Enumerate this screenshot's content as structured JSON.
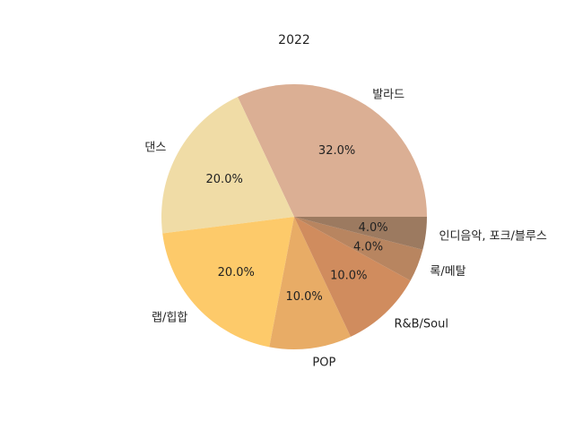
{
  "chart_data": {
    "type": "pie",
    "title": "2022",
    "slices": [
      {
        "label": "발라드",
        "value": 32.0,
        "pct_label": "32.0%",
        "color": "#dbaf94"
      },
      {
        "label": "댄스",
        "value": 20.0,
        "pct_label": "20.0%",
        "color": "#f0dca6"
      },
      {
        "label": "랩/힙합",
        "value": 20.0,
        "pct_label": "20.0%",
        "color": "#fdca6a"
      },
      {
        "label": "POP",
        "value": 10.0,
        "pct_label": "10.0%",
        "color": "#e8ac66"
      },
      {
        "label": "R&B/Soul",
        "value": 10.0,
        "pct_label": "10.0%",
        "color": "#d08c5e"
      },
      {
        "label": "록/메탈",
        "value": 4.0,
        "pct_label": "4.0%",
        "color": "#b88560"
      },
      {
        "label": "인디음악, 포크/블루스",
        "value": 4.0,
        "pct_label": "4.0%",
        "color": "#9c7a60"
      }
    ]
  }
}
